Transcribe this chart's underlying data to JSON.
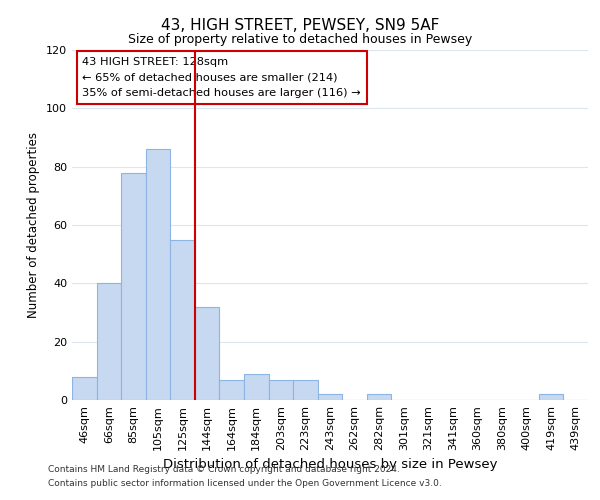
{
  "title": "43, HIGH STREET, PEWSEY, SN9 5AF",
  "subtitle": "Size of property relative to detached houses in Pewsey",
  "xlabel": "Distribution of detached houses by size in Pewsey",
  "ylabel": "Number of detached properties",
  "bar_labels": [
    "46sqm",
    "66sqm",
    "85sqm",
    "105sqm",
    "125sqm",
    "144sqm",
    "164sqm",
    "184sqm",
    "203sqm",
    "223sqm",
    "243sqm",
    "262sqm",
    "282sqm",
    "301sqm",
    "321sqm",
    "341sqm",
    "360sqm",
    "380sqm",
    "400sqm",
    "419sqm",
    "439sqm"
  ],
  "bar_values": [
    8,
    40,
    78,
    86,
    55,
    32,
    7,
    9,
    7,
    7,
    2,
    0,
    2,
    0,
    0,
    0,
    0,
    0,
    0,
    2,
    0
  ],
  "bar_color": "#c6d9f1",
  "bar_edge_color": "#8db4e2",
  "vline_index": 4,
  "vline_color": "#cc0000",
  "ylim": [
    0,
    120
  ],
  "yticks": [
    0,
    20,
    40,
    60,
    80,
    100,
    120
  ],
  "annotation_title": "43 HIGH STREET: 128sqm",
  "annotation_line1": "← 65% of detached houses are smaller (214)",
  "annotation_line2": "35% of semi-detached houses are larger (116) →",
  "annotation_box_color": "#ffffff",
  "annotation_box_edge": "#cc0000",
  "footer_line1": "Contains HM Land Registry data © Crown copyright and database right 2024.",
  "footer_line2": "Contains public sector information licensed under the Open Government Licence v3.0.",
  "bg_color": "#ffffff",
  "grid_color": "#dce6f1"
}
